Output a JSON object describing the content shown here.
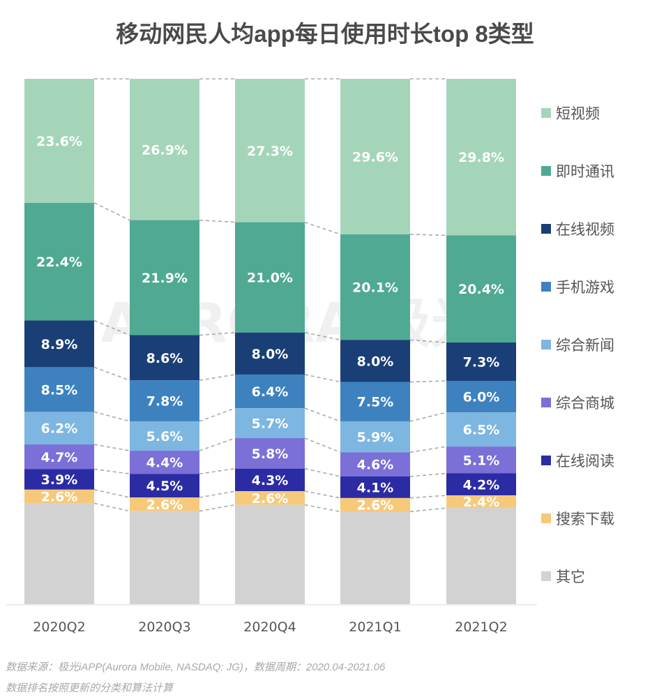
{
  "chart_data": {
    "type": "bar",
    "stacked": true,
    "normalized": true,
    "title": "移动网民人均app每日使用时长top 8类型",
    "xlabel": "",
    "ylabel": "",
    "ylim": [
      0,
      100
    ],
    "grid": false,
    "legend_position": "right",
    "watermark": "AURORA 极光",
    "categories": [
      "2020Q2",
      "2020Q3",
      "2020Q4",
      "2021Q1",
      "2021Q2"
    ],
    "series": [
      {
        "name": "短视频",
        "color": "#a5d5b9",
        "values": [
          23.6,
          26.9,
          27.3,
          29.6,
          29.8
        ],
        "labels": [
          "23.6%",
          "26.9%",
          "27.3%",
          "29.6%",
          "29.8%"
        ]
      },
      {
        "name": "即时通讯",
        "color": "#4fa993",
        "values": [
          22.4,
          21.9,
          21.0,
          20.1,
          20.4
        ],
        "labels": [
          "22.4%",
          "21.9%",
          "21.0%",
          "20.1%",
          "20.4%"
        ]
      },
      {
        "name": "在线视频",
        "color": "#1a3f77",
        "values": [
          8.9,
          8.6,
          8.0,
          8.0,
          7.3
        ],
        "labels": [
          "8.9%",
          "8.6%",
          "8.0%",
          "8.0%",
          "7.3%"
        ]
      },
      {
        "name": "手机游戏",
        "color": "#3d82bf",
        "values": [
          8.5,
          7.8,
          6.4,
          7.5,
          6.0
        ],
        "labels": [
          "8.5%",
          "7.8%",
          "6.4%",
          "7.5%",
          "6.0%"
        ]
      },
      {
        "name": "综合新闻",
        "color": "#7db6e0",
        "values": [
          6.2,
          5.6,
          5.7,
          5.9,
          6.5
        ],
        "labels": [
          "6.2%",
          "5.6%",
          "5.7%",
          "5.9%",
          "6.5%"
        ]
      },
      {
        "name": "综合商城",
        "color": "#7b6fd8",
        "values": [
          4.7,
          4.4,
          5.8,
          4.6,
          5.1
        ],
        "labels": [
          "4.7%",
          "4.4%",
          "5.8%",
          "4.6%",
          "5.1%"
        ]
      },
      {
        "name": "在线阅读",
        "color": "#2b2ca4",
        "values": [
          3.9,
          4.5,
          4.3,
          4.1,
          4.2
        ],
        "labels": [
          "3.9%",
          "4.5%",
          "4.3%",
          "4.1%",
          "4.2%"
        ]
      },
      {
        "name": "搜索下载",
        "color": "#f6c97a",
        "values": [
          2.6,
          2.6,
          2.6,
          2.6,
          2.4
        ],
        "labels": [
          "2.6%",
          "2.6%",
          "2.6%",
          "2.6%",
          "2.4%"
        ]
      },
      {
        "name": "其它",
        "color": "#d2d2d2",
        "values": [
          19.2,
          17.7,
          18.9,
          17.6,
          18.3
        ],
        "labels": [
          "",
          "",
          "",
          "",
          ""
        ]
      }
    ]
  },
  "footnote": {
    "line1": "数据来源：极光iAPP(Aurora Mobile, NASDAQ: JG)，数据周期：2020.04-2021.06",
    "line2": "数据排名按照更新的分类和算法计算"
  }
}
